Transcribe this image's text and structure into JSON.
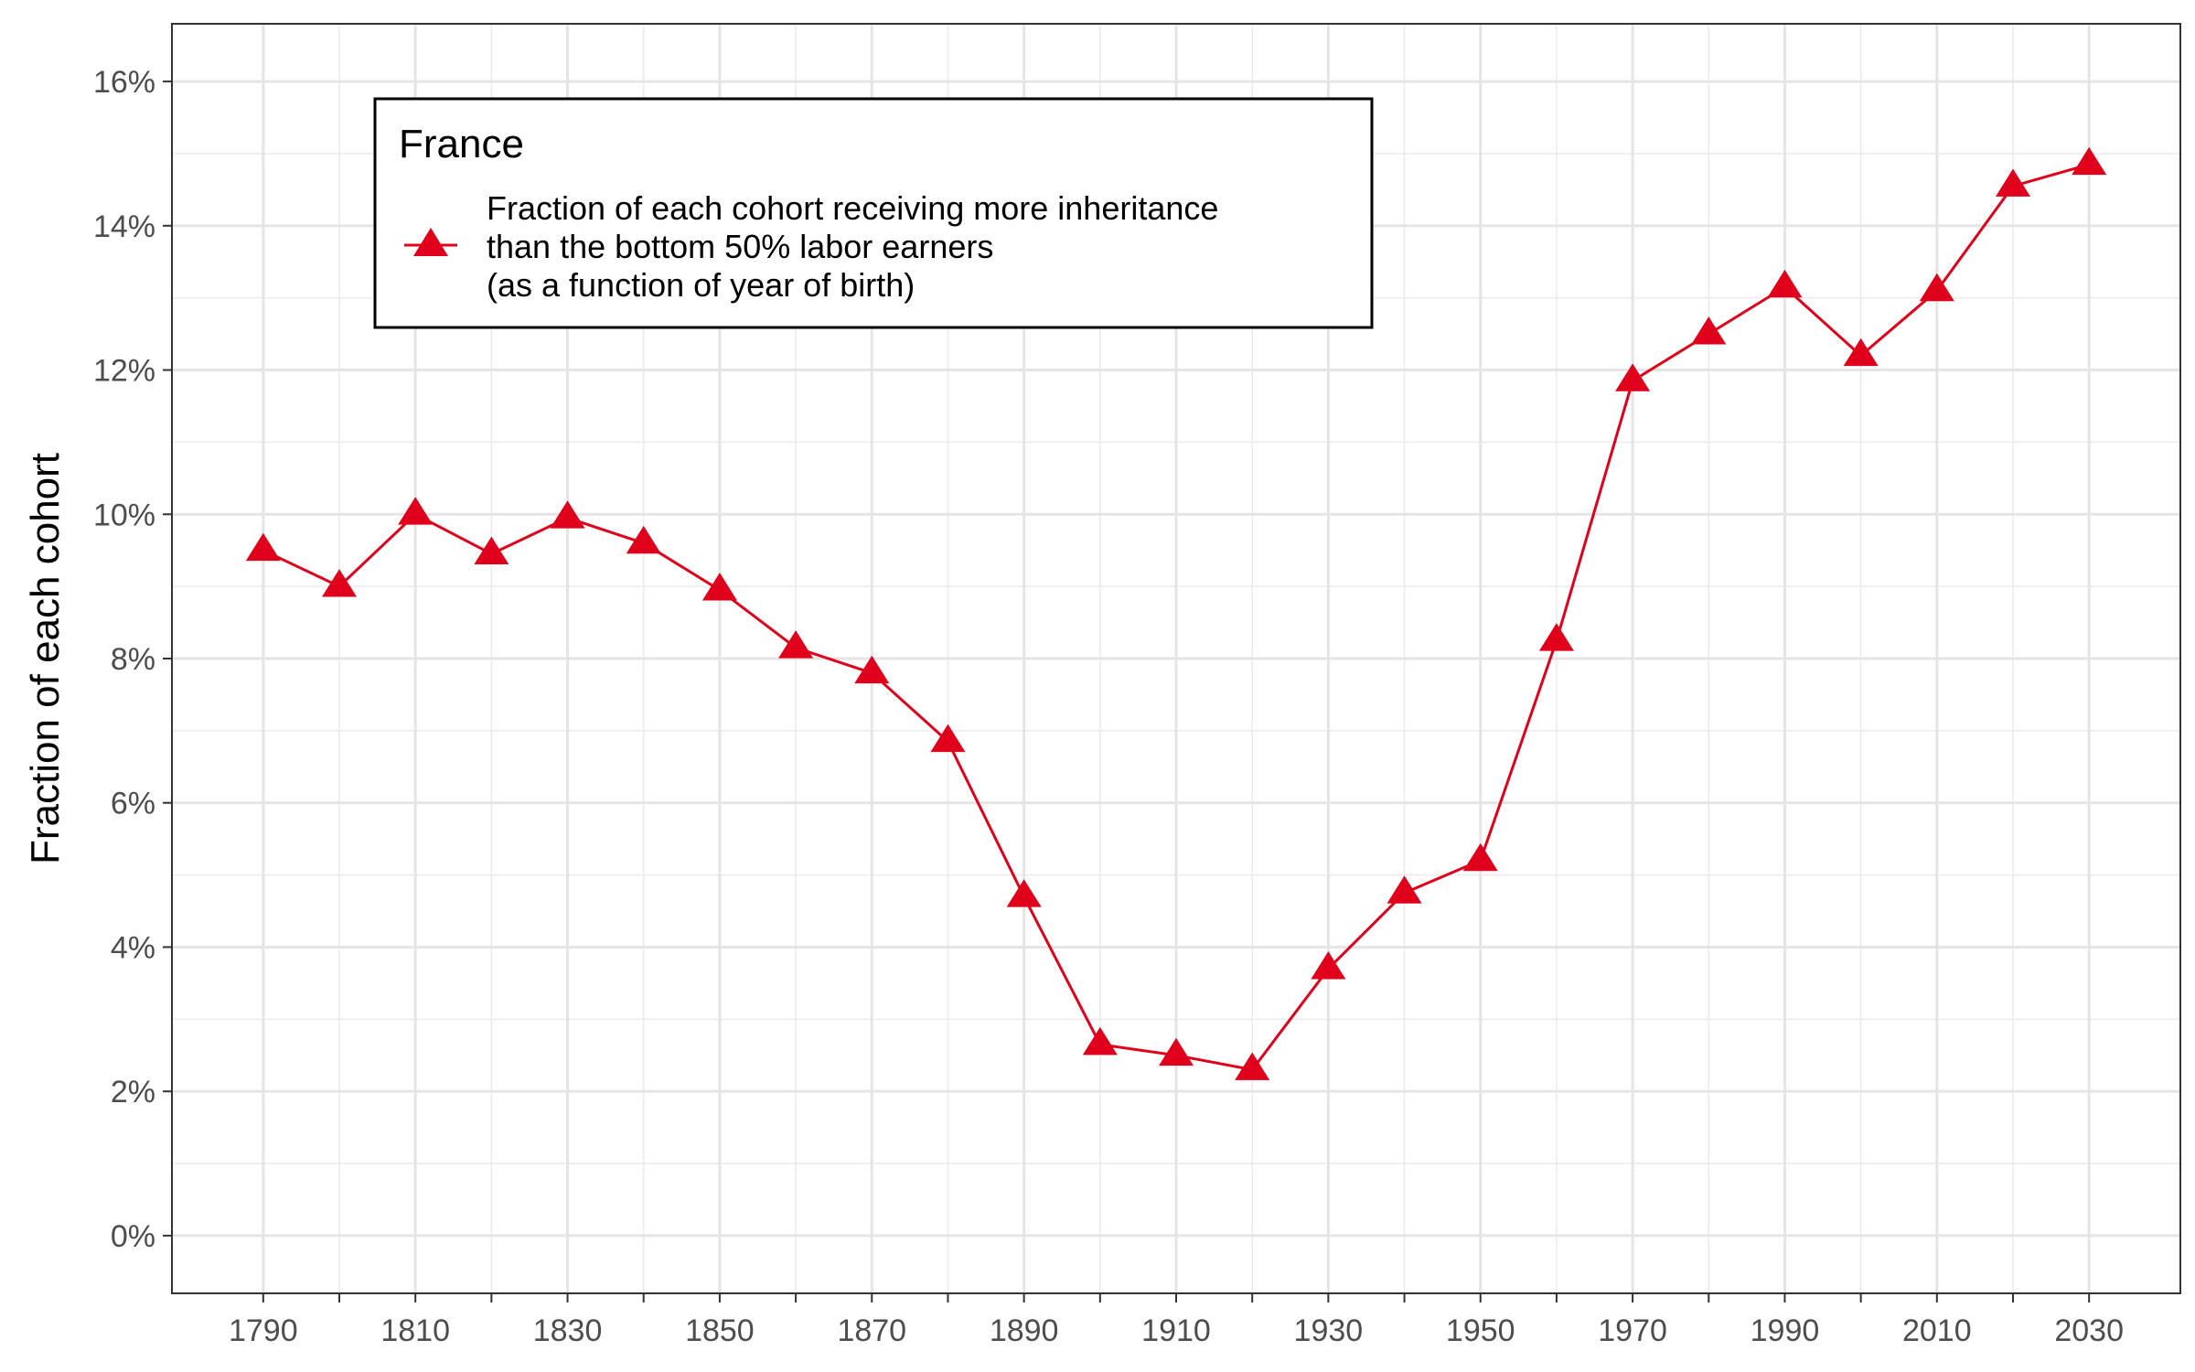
{
  "chart_data": {
    "type": "line",
    "title": "",
    "xlabel": "",
    "ylabel": "Fraction of each cohort",
    "x": [
      1790,
      1800,
      1810,
      1820,
      1830,
      1840,
      1850,
      1860,
      1870,
      1880,
      1890,
      1900,
      1910,
      1920,
      1930,
      1940,
      1950,
      1960,
      1970,
      1980,
      1990,
      2000,
      2010,
      2020,
      2030
    ],
    "series": [
      {
        "name_lines": [
          "Fraction of each cohort receiving more inheritance",
          "than the bottom 50% labor earners",
          "(as a function of year of birth)"
        ],
        "marker": "triangle-up",
        "color": "#e0001b",
        "values": [
          9.5,
          9.0,
          10.0,
          9.45,
          9.95,
          9.6,
          8.95,
          8.15,
          7.8,
          6.85,
          4.7,
          2.65,
          2.5,
          2.3,
          3.7,
          4.75,
          5.2,
          8.25,
          11.85,
          12.5,
          13.15,
          12.2,
          13.1,
          14.55,
          14.85
        ]
      }
    ],
    "xlim": [
      1778,
      2042
    ],
    "ylim": [
      -0.8,
      16.8
    ],
    "x_ticks": [
      1790,
      1810,
      1830,
      1850,
      1870,
      1890,
      1910,
      1930,
      1950,
      1970,
      1990,
      2010,
      2030
    ],
    "y_ticks": [
      0,
      2,
      4,
      6,
      8,
      10,
      12,
      14,
      16
    ],
    "y_tick_labels": [
      "0%",
      "2%",
      "4%",
      "6%",
      "8%",
      "10%",
      "12%",
      "14%",
      "16%"
    ],
    "grid": true,
    "legend": {
      "title": "France",
      "placement": "top-left"
    }
  }
}
